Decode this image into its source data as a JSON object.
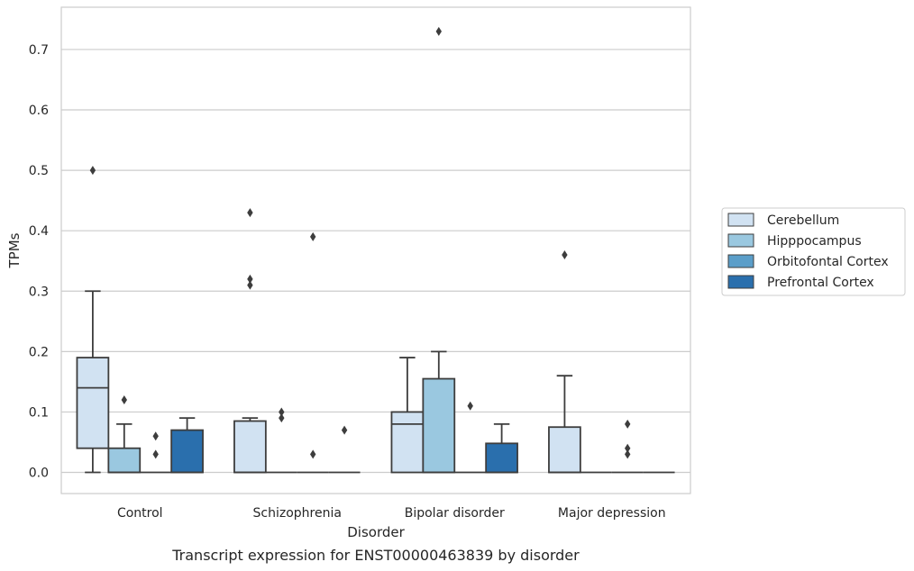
{
  "caption": "Transcript expression for ENST00000463839 by disorder",
  "chart_data": {
    "type": "boxplot",
    "xlabel": "Disorder",
    "ylabel": "TPMs",
    "ylim": [
      -0.035,
      0.77
    ],
    "yticks": [
      "0.0",
      "0.1",
      "0.2",
      "0.3",
      "0.4",
      "0.5",
      "0.6",
      "0.7"
    ],
    "grid": true,
    "legend_position": "right",
    "categories": [
      "Control",
      "Schizophrenia",
      "Bipolar disorder",
      "Major depression"
    ],
    "series": [
      {
        "name": "Cerebellum",
        "color": "#d1e2f2",
        "boxes": [
          {
            "q1": 0.04,
            "median": 0.14,
            "q3": 0.19,
            "whisker_low": 0.0,
            "whisker_high": 0.3,
            "outliers": [
              0.5
            ]
          },
          {
            "q1": 0.0,
            "median": 0.0,
            "q3": 0.085,
            "whisker_low": 0.0,
            "whisker_high": 0.09,
            "outliers": [
              0.31,
              0.32,
              0.43
            ]
          },
          {
            "q1": 0.0,
            "median": 0.08,
            "q3": 0.1,
            "whisker_low": 0.0,
            "whisker_high": 0.19,
            "outliers": []
          },
          {
            "q1": 0.0,
            "median": 0.0,
            "q3": 0.075,
            "whisker_low": 0.0,
            "whisker_high": 0.16,
            "outliers": [
              0.36
            ]
          }
        ]
      },
      {
        "name": "Hipppocampus",
        "color": "#9ac8e0",
        "boxes": [
          {
            "q1": 0.0,
            "median": 0.0,
            "q3": 0.04,
            "whisker_low": 0.0,
            "whisker_high": 0.08,
            "outliers": [
              0.12
            ]
          },
          {
            "q1": 0.0,
            "median": 0.0,
            "q3": 0.0,
            "whisker_low": 0.0,
            "whisker_high": 0.0,
            "outliers": [
              0.09,
              0.1
            ]
          },
          {
            "q1": 0.0,
            "median": 0.0,
            "q3": 0.155,
            "whisker_low": 0.0,
            "whisker_high": 0.2,
            "outliers": [
              0.73
            ]
          },
          {
            "q1": 0.0,
            "median": 0.0,
            "q3": 0.0,
            "whisker_low": 0.0,
            "whisker_high": 0.0,
            "outliers": []
          }
        ]
      },
      {
        "name": "Orbitofontal Cortex",
        "color": "#5b9ec9",
        "boxes": [
          {
            "q1": 0.0,
            "median": 0.0,
            "q3": 0.0,
            "whisker_low": 0.0,
            "whisker_high": 0.0,
            "outliers": [
              0.03,
              0.06
            ]
          },
          {
            "q1": 0.0,
            "median": 0.0,
            "q3": 0.0,
            "whisker_low": 0.0,
            "whisker_high": 0.0,
            "outliers": [
              0.39,
              0.03
            ]
          },
          {
            "q1": 0.0,
            "median": 0.0,
            "q3": 0.0,
            "whisker_low": 0.0,
            "whisker_high": 0.0,
            "outliers": [
              0.11
            ]
          },
          {
            "q1": 0.0,
            "median": 0.0,
            "q3": 0.0,
            "whisker_low": 0.0,
            "whisker_high": 0.0,
            "outliers": [
              0.03,
              0.04,
              0.08
            ]
          }
        ]
      },
      {
        "name": "Prefrontal Cortex",
        "color": "#2a6fad",
        "boxes": [
          {
            "q1": 0.0,
            "median": 0.0,
            "q3": 0.07,
            "whisker_low": 0.0,
            "whisker_high": 0.09,
            "outliers": []
          },
          {
            "q1": 0.0,
            "median": 0.0,
            "q3": 0.0,
            "whisker_low": 0.0,
            "whisker_high": 0.0,
            "outliers": [
              0.07
            ]
          },
          {
            "q1": 0.0,
            "median": 0.0,
            "q3": 0.048,
            "whisker_low": 0.0,
            "whisker_high": 0.08,
            "outliers": []
          },
          {
            "q1": 0.0,
            "median": 0.0,
            "q3": 0.0,
            "whisker_low": 0.0,
            "whisker_high": 0.0,
            "outliers": []
          }
        ]
      }
    ]
  }
}
